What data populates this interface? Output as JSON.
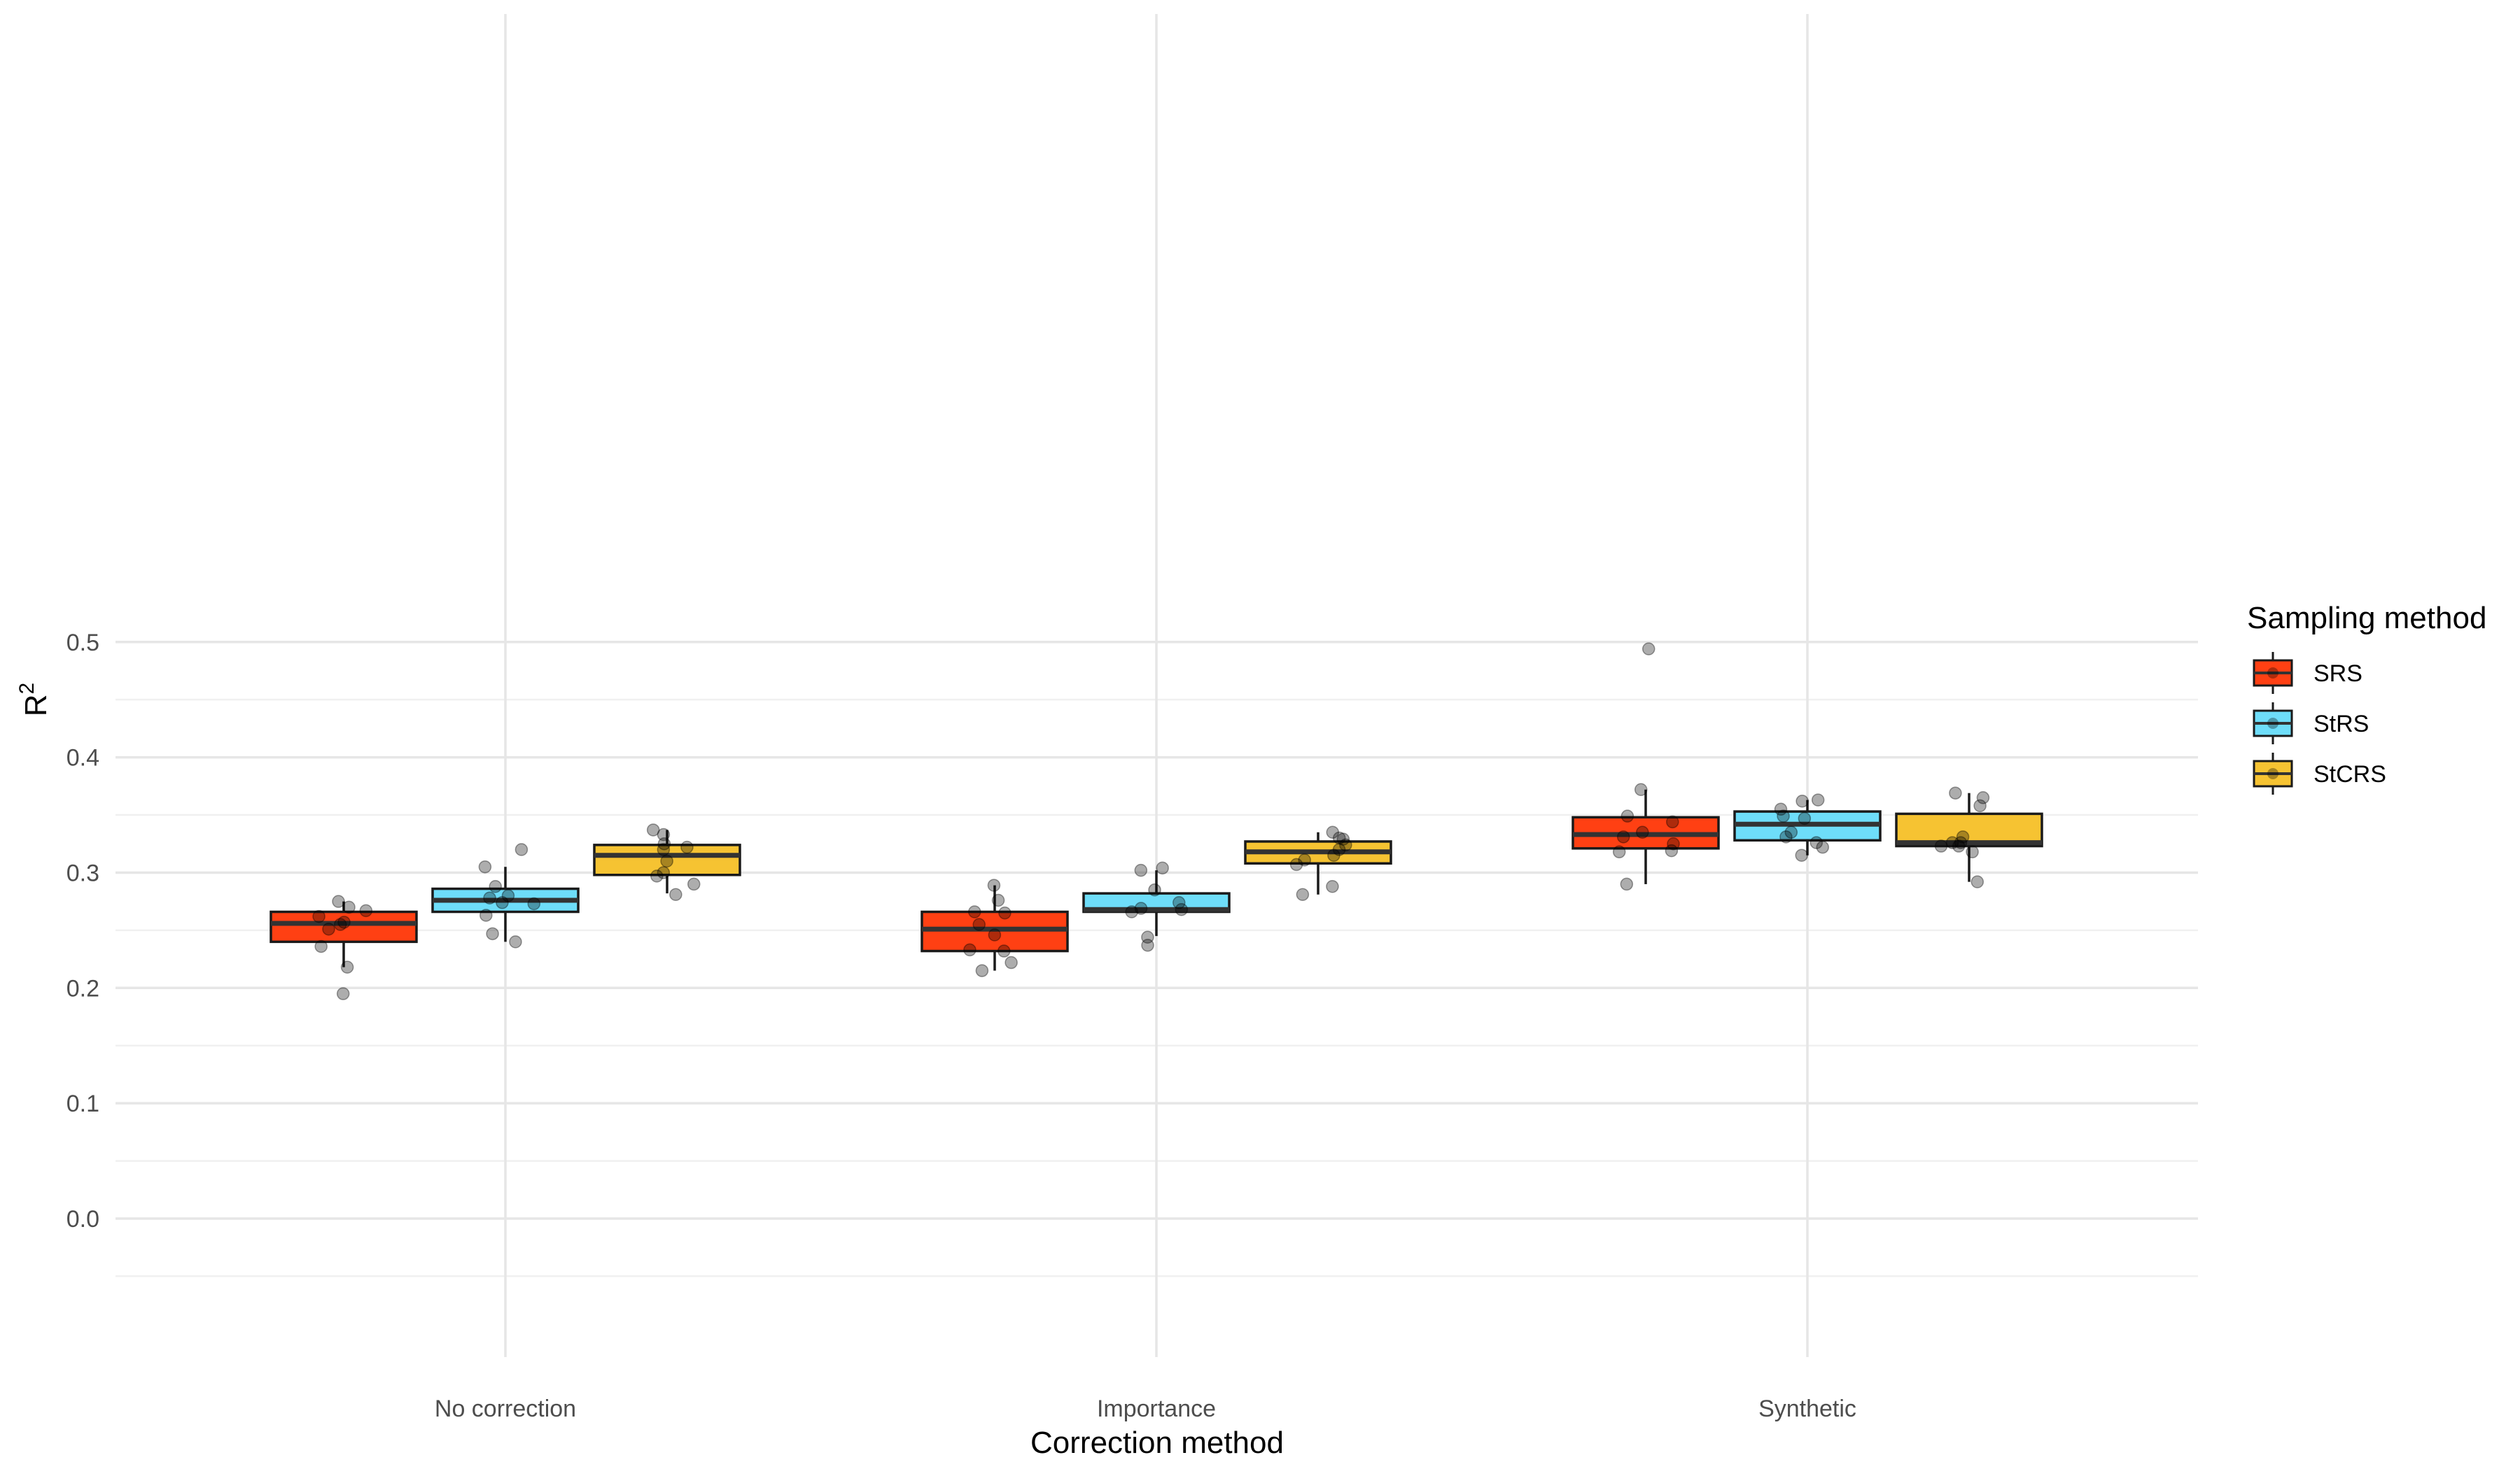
{
  "chart_data": {
    "type": "box",
    "xlabel": "Correction method",
    "ylabel": "R",
    "ylabel_superscript": "2",
    "ylim": [
      -0.05,
      0.52
    ],
    "yticks": [
      0.0,
      0.1,
      0.2,
      0.3,
      0.4,
      0.5
    ],
    "ytick_labels": [
      "0.0",
      "0.1",
      "0.2",
      "0.3",
      "0.4",
      "0.5"
    ],
    "categories": [
      "No correction",
      "Importance",
      "Synthetic"
    ],
    "grid": true,
    "legend": {
      "title": "Sampling method",
      "position": "right",
      "entries": [
        "SRS",
        "StRS",
        "StCRS"
      ]
    },
    "series": [
      {
        "name": "SRS",
        "color": "#FF4013",
        "boxes": [
          {
            "whisker_low": 0.218,
            "q1": 0.24,
            "median": 0.256,
            "q3": 0.266,
            "whisker_high": 0.275
          },
          {
            "whisker_low": 0.215,
            "q1": 0.232,
            "median": 0.251,
            "q3": 0.266,
            "whisker_high": 0.289
          },
          {
            "whisker_low": 0.29,
            "q1": 0.321,
            "median": 0.333,
            "q3": 0.348,
            "whisker_high": 0.372
          }
        ],
        "points": [
          [
            0.195,
            0.218,
            0.236,
            0.251,
            0.255,
            0.257,
            0.262,
            0.267,
            0.27,
            0.275
          ],
          [
            0.215,
            0.222,
            0.232,
            0.233,
            0.246,
            0.255,
            0.265,
            0.266,
            0.276,
            0.289
          ],
          [
            0.29,
            0.318,
            0.319,
            0.325,
            0.331,
            0.335,
            0.344,
            0.349,
            0.372,
            0.494
          ]
        ]
      },
      {
        "name": "StRS",
        "color": "#6EDDF9",
        "boxes": [
          {
            "whisker_low": 0.24,
            "q1": 0.266,
            "median": 0.276,
            "q3": 0.286,
            "whisker_high": 0.305
          },
          {
            "whisker_low": 0.245,
            "q1": 0.266,
            "median": 0.268,
            "q3": 0.282,
            "whisker_high": 0.302
          },
          {
            "whisker_low": 0.315,
            "q1": 0.328,
            "median": 0.342,
            "q3": 0.353,
            "whisker_high": 0.363
          }
        ],
        "points": [
          [
            0.24,
            0.247,
            0.263,
            0.273,
            0.274,
            0.278,
            0.28,
            0.288,
            0.305,
            0.32
          ],
          [
            0.237,
            0.244,
            0.266,
            0.268,
            0.269,
            0.274,
            0.285,
            0.302,
            0.304
          ],
          [
            0.315,
            0.322,
            0.326,
            0.331,
            0.335,
            0.347,
            0.349,
            0.355,
            0.362,
            0.363
          ]
        ]
      },
      {
        "name": "StCRS",
        "color": "#F6C332",
        "boxes": [
          {
            "whisker_low": 0.282,
            "q1": 0.298,
            "median": 0.315,
            "q3": 0.324,
            "whisker_high": 0.337
          },
          {
            "whisker_low": 0.281,
            "q1": 0.308,
            "median": 0.318,
            "q3": 0.327,
            "whisker_high": 0.335
          },
          {
            "whisker_low": 0.292,
            "q1": 0.323,
            "median": 0.326,
            "q3": 0.351,
            "whisker_high": 0.369
          }
        ],
        "points": [
          [
            0.281,
            0.29,
            0.297,
            0.3,
            0.31,
            0.32,
            0.322,
            0.325,
            0.333,
            0.337
          ],
          [
            0.281,
            0.288,
            0.307,
            0.311,
            0.315,
            0.32,
            0.324,
            0.329,
            0.33,
            0.335
          ],
          [
            0.292,
            0.318,
            0.323,
            0.323,
            0.326,
            0.326,
            0.331,
            0.358,
            0.365,
            0.369
          ]
        ]
      }
    ]
  }
}
